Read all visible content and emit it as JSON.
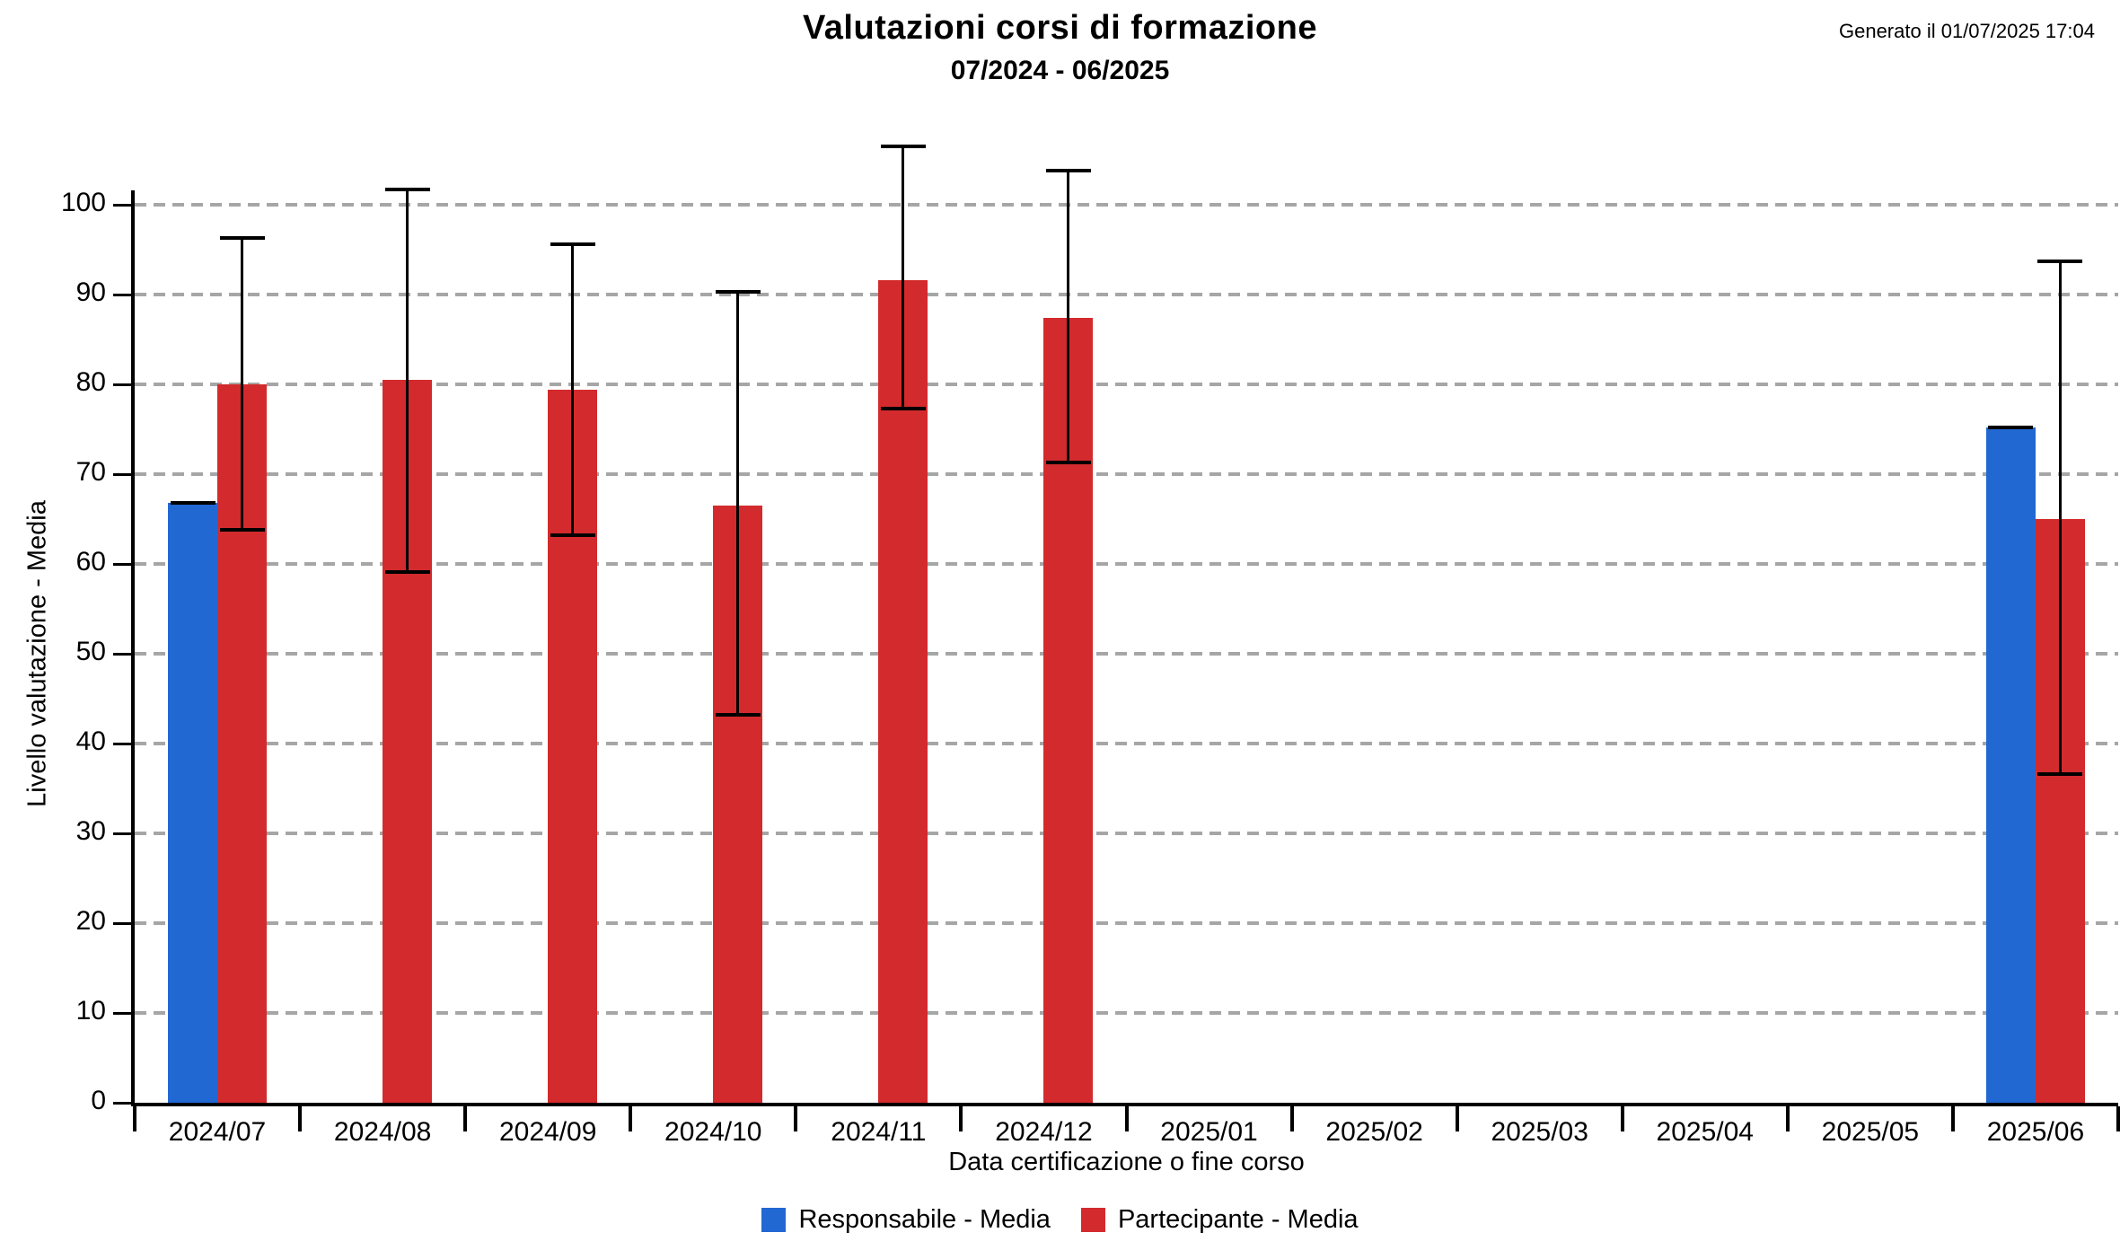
{
  "header": {
    "title": "Valutazioni corsi di formazione",
    "subtitle": "07/2024 - 06/2025",
    "generated": "Generato il 01/07/2025 17:04"
  },
  "legend": [
    {
      "label": "Responsabile - Media",
      "color": "#2268D2"
    },
    {
      "label": "Partecipante - Media",
      "color": "#D32B2D"
    }
  ],
  "chart_data": {
    "type": "bar",
    "title": "Valutazioni corsi di formazione",
    "subtitle": "07/2024 - 06/2025",
    "xlabel": "Data certificazione o fine corso",
    "ylabel": "Livello valutazione - Media",
    "ylim": [
      0,
      100
    ],
    "ytick_step": 10,
    "grid": "horizontal-dashed",
    "legend_position": "bottom",
    "categories": [
      "2024/07",
      "2024/08",
      "2024/09",
      "2024/10",
      "2024/11",
      "2024/12",
      "2025/01",
      "2025/02",
      "2025/03",
      "2025/04",
      "2025/05",
      "2025/06"
    ],
    "series": [
      {
        "name": "Responsabile - Media",
        "color": "#2268D2",
        "values": [
          66.8,
          null,
          null,
          null,
          null,
          null,
          null,
          null,
          null,
          null,
          null,
          75.2
        ],
        "error_bars": [
          [
            66.8,
            66.8
          ],
          null,
          null,
          null,
          null,
          null,
          null,
          null,
          null,
          null,
          null,
          [
            75.2,
            75.2
          ]
        ]
      },
      {
        "name": "Partecipante - Media",
        "color": "#D32B2D",
        "values": [
          80.0,
          80.5,
          79.4,
          66.5,
          91.6,
          87.4,
          null,
          null,
          null,
          null,
          null,
          65.0
        ],
        "error_bars": [
          [
            63.8,
            96.3
          ],
          [
            59.1,
            101.7
          ],
          [
            63.2,
            95.6
          ],
          [
            43.2,
            90.3
          ],
          [
            77.3,
            106.5
          ],
          [
            71.3,
            103.8
          ],
          null,
          null,
          null,
          null,
          null,
          [
            36.6,
            93.7
          ]
        ]
      }
    ]
  },
  "colors": {
    "axis": "#000000",
    "grid": "#A6A6A6",
    "text": "#000000"
  }
}
